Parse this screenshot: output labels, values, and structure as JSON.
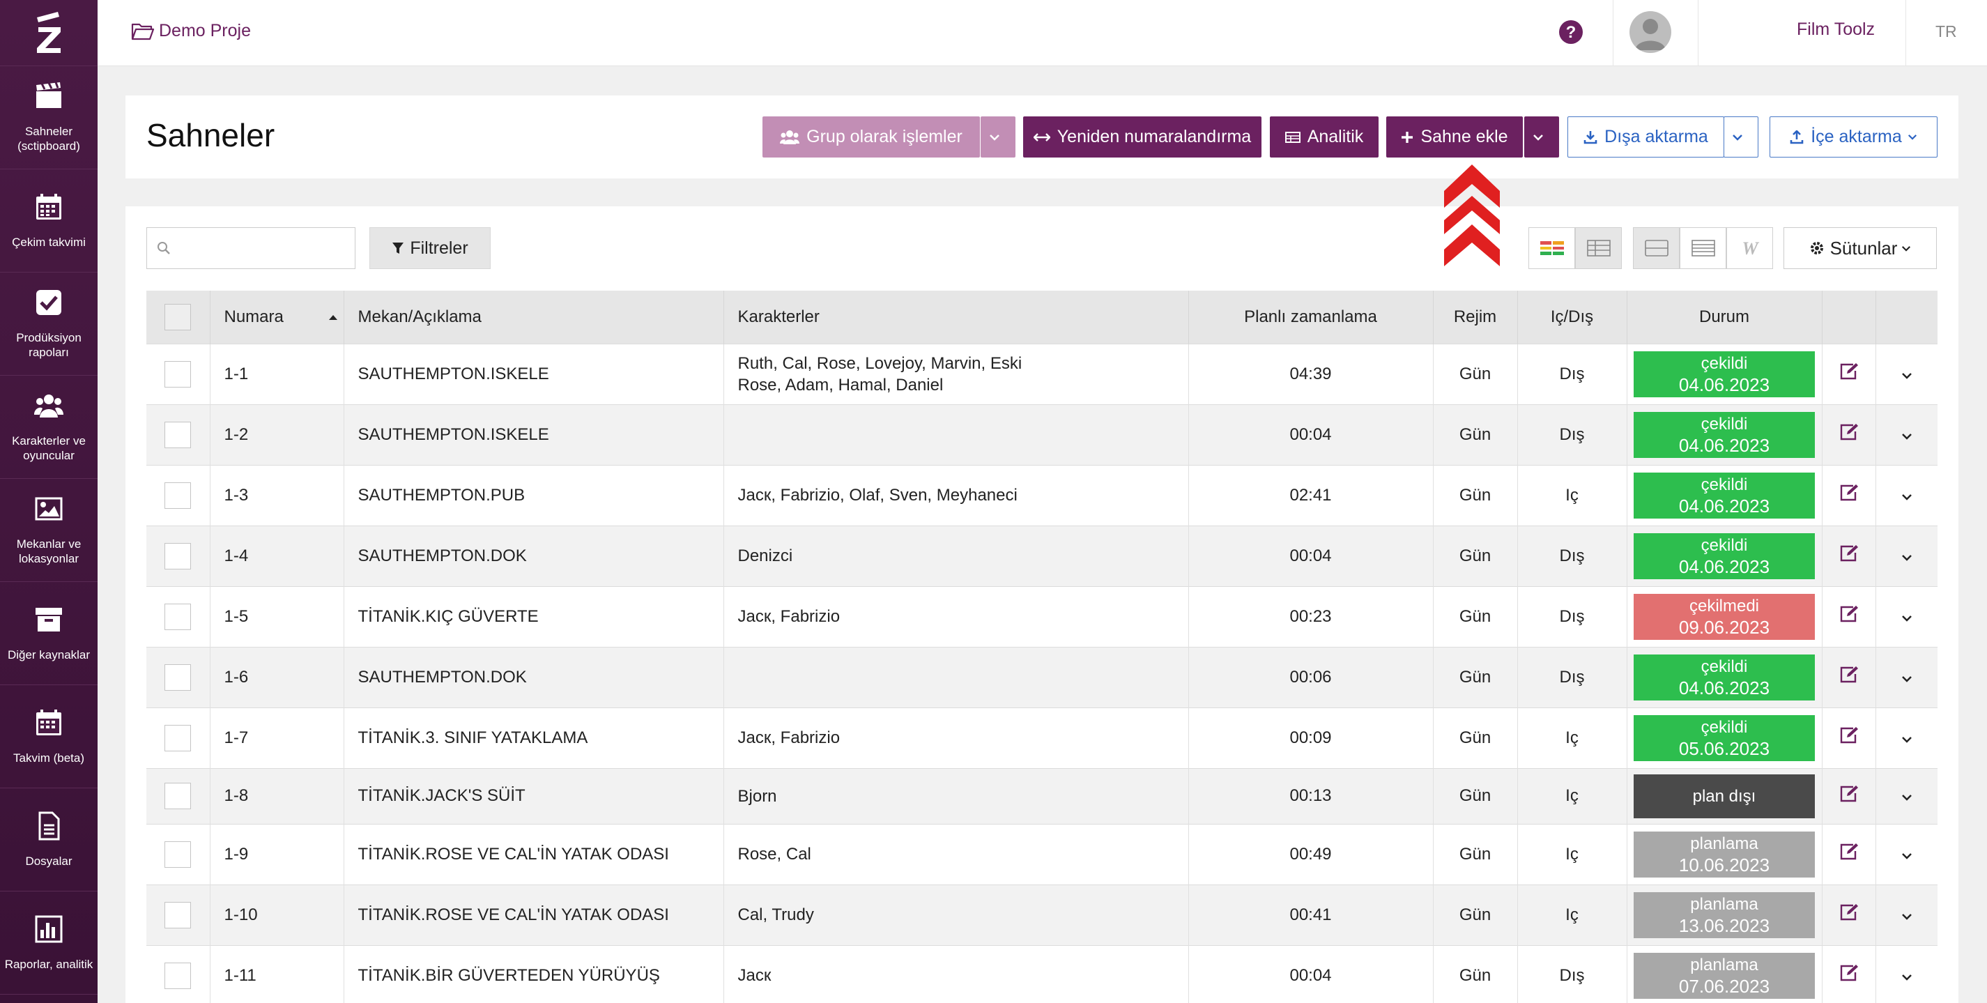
{
  "app": {
    "logo_letter": "Z",
    "breadcrumb": "Demo Proje",
    "user_name": "Film Toolz",
    "lang": "TR"
  },
  "sidebar": [
    {
      "label": "Sahneler (sctipboard)",
      "icon": "clapperboard-icon"
    },
    {
      "label": "Çekim takvimi",
      "icon": "calendar-icon"
    },
    {
      "label": "Prodüksiyon rapoları",
      "icon": "checkbox-icon"
    },
    {
      "label": "Karakterler ve oyuncular",
      "icon": "users-icon"
    },
    {
      "label": "Mekanlar ve lokasyonlar",
      "icon": "image-icon"
    },
    {
      "label": "Diğer kaynaklar",
      "icon": "archive-icon"
    },
    {
      "label": "Takvim (beta)",
      "icon": "calendar-grid-icon"
    },
    {
      "label": "Dosyalar",
      "icon": "file-icon"
    },
    {
      "label": "Raporlar, analitik",
      "icon": "bar-chart-icon"
    }
  ],
  "page": {
    "title": "Sahneler"
  },
  "toolbar": {
    "group_label": "Grup olarak işlemler",
    "renumber_label": "Yeniden numaralandırma",
    "analytics_label": "Analitik",
    "add_scene_label": "Sahne ekle",
    "export_label": "Dışa aktarma",
    "import_label": "İçe aktarma"
  },
  "colors": {
    "accent": "#6b2160",
    "shot": "#2dbe4e",
    "not_shot": "#e27070",
    "off_plan": "#4a4a4a",
    "planning": "#a8a8a8",
    "arrow": "#e02020"
  },
  "filter": {
    "search_placeholder": "",
    "filters_label": "Filtreler",
    "columns_label": "Sütunlar"
  },
  "table": {
    "headers": {
      "number": "Numara",
      "location": "Mekan/Açıklama",
      "characters": "Karakterler",
      "planned": "Planlı zamanlama",
      "regime": "Rejim",
      "inout": "Iç/Dış",
      "status": "Durum"
    },
    "rows": [
      {
        "num": "1-1",
        "loc": "SAUTHEMPTON.ISKELE",
        "chars": "Ruth, Cal, Rose, Lovejoy, Marvin, Eski\nRose, Adam, Hamal, Daniel",
        "time": "04:39",
        "regime": "Gün",
        "io": "Dış",
        "status": "çekildi",
        "date": "04.06.2023",
        "kind": "shot"
      },
      {
        "num": "1-2",
        "loc": "SAUTHEMPTON.ISKELE",
        "chars": "",
        "time": "00:04",
        "regime": "Gün",
        "io": "Dış",
        "status": "çekildi",
        "date": "04.06.2023",
        "kind": "shot"
      },
      {
        "num": "1-3",
        "loc": "SAUTHEMPTON.PUB",
        "chars": "Jacк, Fabrizio, Olaf, Sven, Meyhaneci",
        "time": "02:41",
        "regime": "Gün",
        "io": "Iç",
        "status": "çekildi",
        "date": "04.06.2023",
        "kind": "shot"
      },
      {
        "num": "1-4",
        "loc": "SAUTHEMPTON.DOK",
        "chars": "Denizci",
        "time": "00:04",
        "regime": "Gün",
        "io": "Dış",
        "status": "çekildi",
        "date": "04.06.2023",
        "kind": "shot"
      },
      {
        "num": "1-5",
        "loc": "TİTANİK.KIÇ GÜVERTE",
        "chars": "Jacк, Fabrizio",
        "time": "00:23",
        "regime": "Gün",
        "io": "Dış",
        "status": "çekilmedi",
        "date": "09.06.2023",
        "kind": "not_shot"
      },
      {
        "num": "1-6",
        "loc": "SAUTHEMPTON.DOK",
        "chars": "",
        "time": "00:06",
        "regime": "Gün",
        "io": "Dış",
        "status": "çekildi",
        "date": "04.06.2023",
        "kind": "shot"
      },
      {
        "num": "1-7",
        "loc": "TİTANİK.3. SINIF YATAKLAMA",
        "chars": "Jacк, Fabrizio",
        "time": "00:09",
        "regime": "Gün",
        "io": "Iç",
        "status": "çekildi",
        "date": "05.06.2023",
        "kind": "shot"
      },
      {
        "num": "1-8",
        "loc": "TİTANİK.JACK'S SÜİT",
        "chars": "Bjorn",
        "time": "00:13",
        "regime": "Gün",
        "io": "Iç",
        "status": "plan dışı",
        "date": "",
        "kind": "off_plan"
      },
      {
        "num": "1-9",
        "loc": "TİTANİK.ROSE VE CAL'İN YATAK ODASI",
        "chars": "Rose, Cal",
        "time": "00:49",
        "regime": "Gün",
        "io": "Iç",
        "status": "planlama",
        "date": "10.06.2023",
        "kind": "planning"
      },
      {
        "num": "1-10",
        "loc": "TİTANİK.ROSE VE CAL'İN YATAK ODASI",
        "chars": "Cal, Trudy",
        "time": "00:41",
        "regime": "Gün",
        "io": "Iç",
        "status": "planlama",
        "date": "13.06.2023",
        "kind": "planning"
      },
      {
        "num": "1-11",
        "loc": "TİTANİK.BİR GÜVERTEDEN YÜRÜYÜŞ",
        "chars": "Jacк",
        "time": "00:04",
        "regime": "Gün",
        "io": "Dış",
        "status": "planlama",
        "date": "07.06.2023",
        "kind": "planning"
      }
    ]
  }
}
